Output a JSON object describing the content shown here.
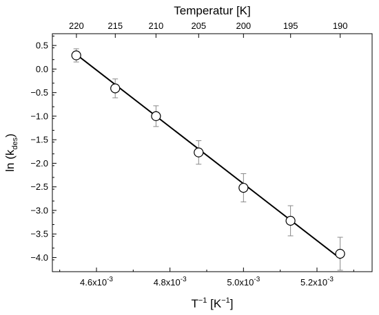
{
  "chart_data": {
    "type": "scatter",
    "xlabel": {
      "base": "T",
      "exp": "−1",
      "rest": " [K",
      "rest_exp": "−1",
      "close": "]"
    },
    "ylabel": {
      "base": "ln (k",
      "sub": "des",
      "close": ")"
    },
    "top_axis_label": "Temperatur [K]",
    "xlim": [
      0.00448,
      0.00535
    ],
    "ylim": [
      -4.3,
      0.75
    ],
    "x_ticks": [
      {
        "value": 0.0046,
        "mant": "4.6x10",
        "exp": "-3"
      },
      {
        "value": 0.0048,
        "mant": "4.8x10",
        "exp": "-3"
      },
      {
        "value": 0.005,
        "mant": "5.0x10",
        "exp": "-3"
      },
      {
        "value": 0.0052,
        "mant": "5.2x10",
        "exp": "-3"
      }
    ],
    "y_ticks": [
      {
        "value": 0.5,
        "label": "0.5"
      },
      {
        "value": 0.0,
        "label": "0.0"
      },
      {
        "value": -0.5,
        "label": "−0.5"
      },
      {
        "value": -1.0,
        "label": "−1.0"
      },
      {
        "value": -1.5,
        "label": "−1.5"
      },
      {
        "value": -2.0,
        "label": "−2.0"
      },
      {
        "value": -2.5,
        "label": "−2.5"
      },
      {
        "value": -3.0,
        "label": "−3.0"
      },
      {
        "value": -3.5,
        "label": "−3.5"
      },
      {
        "value": -4.0,
        "label": "−4.0"
      }
    ],
    "top_ticks": [
      {
        "temperature": 220,
        "label": "220"
      },
      {
        "temperature": 215,
        "label": "215"
      },
      {
        "temperature": 210,
        "label": "210"
      },
      {
        "temperature": 205,
        "label": "205"
      },
      {
        "temperature": 200,
        "label": "200"
      },
      {
        "temperature": 195,
        "label": "195"
      },
      {
        "temperature": 190,
        "label": "190"
      }
    ],
    "points": [
      {
        "x": 0.004545,
        "y": 0.29,
        "err": 0.14
      },
      {
        "x": 0.004651,
        "y": -0.41,
        "err": 0.2
      },
      {
        "x": 0.004762,
        "y": -1.0,
        "err": 0.22
      },
      {
        "x": 0.004878,
        "y": -1.77,
        "err": 0.25
      },
      {
        "x": 0.005,
        "y": -2.52,
        "err": 0.3
      },
      {
        "x": 0.005128,
        "y": -3.22,
        "err": 0.32
      },
      {
        "x": 0.005263,
        "y": -3.92,
        "err": 0.35
      }
    ],
    "fit_line": {
      "x": [
        0.004545,
        0.005263
      ],
      "y": [
        0.31,
        -4.02
      ]
    },
    "grid": false,
    "legend": "none"
  }
}
